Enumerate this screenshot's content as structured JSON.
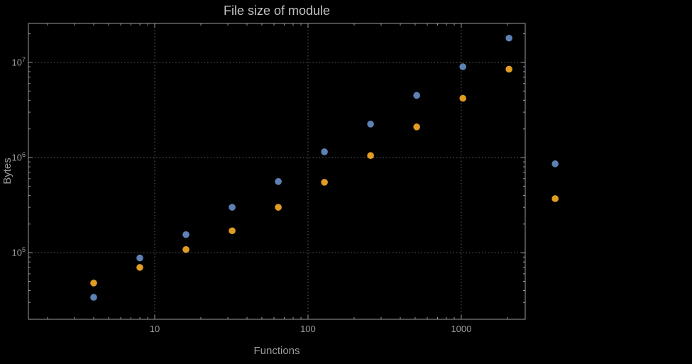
{
  "figure": {
    "background": "#000000",
    "frame_color": "#9a9a9a",
    "grid_color": "#5f5f5f",
    "tick_label_color": "#9c9c9c",
    "title_color": "#c3c3c3",
    "axis_label_color": "#9c9c9c"
  },
  "chart_data": {
    "type": "scatter",
    "title": "File size of module",
    "xlabel": "Functions",
    "ylabel": "Bytes",
    "x_scale": "log",
    "y_scale": "log",
    "grid": "major-dotted",
    "legend": "none",
    "x": [
      4,
      8,
      16,
      32,
      64,
      128,
      256,
      512,
      1024,
      2048,
      4096
    ],
    "series": [
      {
        "name": "series-blue",
        "color": "#5e81b5",
        "values": [
          34000,
          88000,
          155000,
          300000,
          560000,
          1150000,
          2250000,
          4500000,
          9000000,
          18000000,
          860000
        ]
      },
      {
        "name": "series-orange",
        "color": "#e19c24",
        "values": [
          48000,
          70000,
          108000,
          170000,
          300000,
          550000,
          1050000,
          2100000,
          4200000,
          8500000,
          370000
        ]
      }
    ],
    "x_ticks": [
      {
        "value": 10,
        "label": "10"
      },
      {
        "value": 100,
        "label": "100"
      },
      {
        "value": 1000,
        "label": "1000"
      }
    ],
    "y_ticks": [
      {
        "value": 100000,
        "base": "10",
        "exp": "5"
      },
      {
        "value": 1000000,
        "base": "10",
        "exp": "6"
      },
      {
        "value": 10000000,
        "base": "10",
        "exp": "7"
      }
    ],
    "xlog_range": [
      0.176,
      3.417
    ],
    "ylog_range": [
      4.3,
      7.41
    ]
  }
}
